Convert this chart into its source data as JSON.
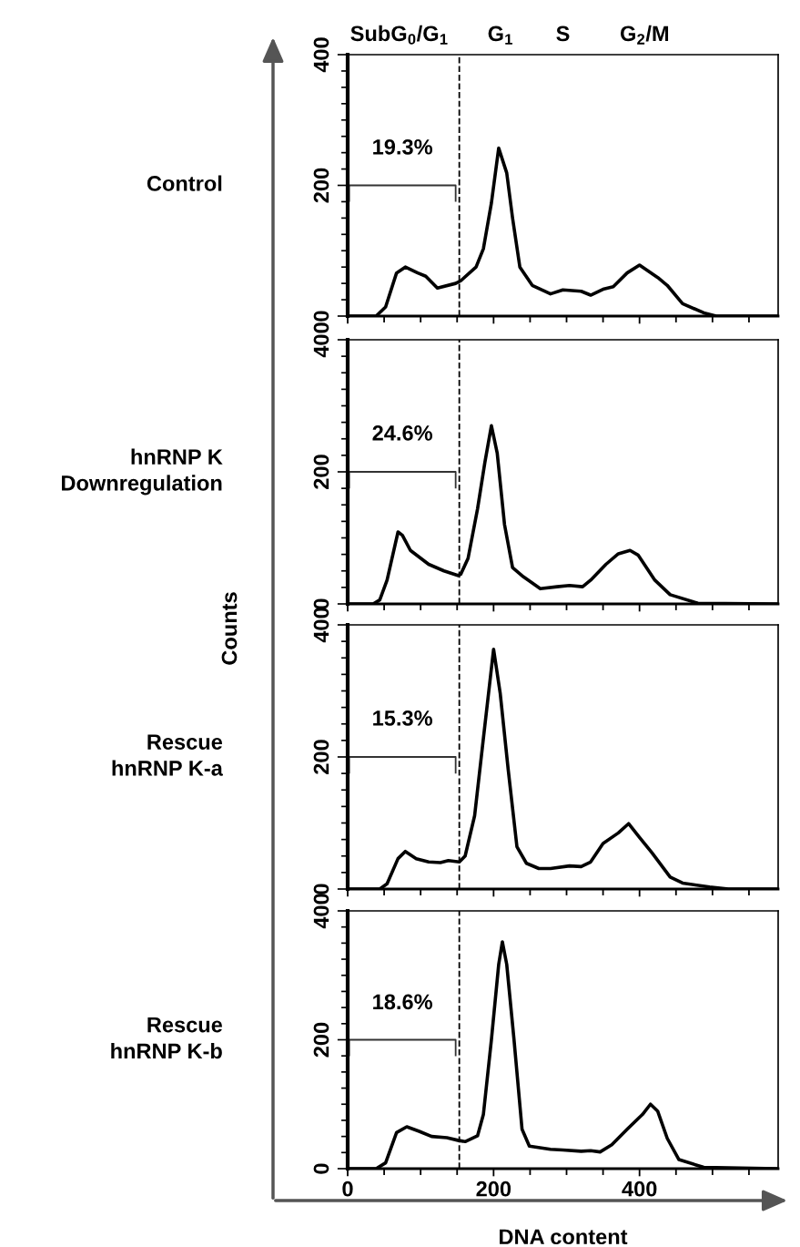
{
  "chart_data": [
    {
      "type": "line",
      "title": "Control",
      "series": [
        {
          "color": "#000000",
          "x": [
            0,
            39,
            52,
            67,
            79,
            96,
            107,
            123,
            148,
            155,
            176,
            186,
            197,
            207,
            218,
            226,
            236,
            253,
            278,
            295,
            320,
            333,
            350,
            364,
            383,
            400,
            425,
            438,
            459,
            488,
            505,
            590
          ],
          "values": [
            0,
            0,
            14,
            66,
            75,
            66,
            61,
            43,
            50,
            54,
            75,
            103,
            173,
            257,
            219,
            150,
            75,
            47,
            34,
            40,
            38,
            32,
            41,
            45,
            66,
            78,
            59,
            47,
            19,
            5,
            0,
            0
          ]
        }
      ],
      "xlim": [
        0,
        590
      ],
      "xticks": [
        0,
        {
          "value": 50,
          "label": null
        },
        {
          "value": 100,
          "label": null
        },
        {
          "value": 150,
          "label": null
        },
        200,
        {
          "value": 250,
          "label": null
        },
        {
          "value": 300,
          "label": null
        },
        {
          "value": 350,
          "label": null
        },
        400,
        {
          "value": 450,
          "label": null
        },
        {
          "value": 500,
          "label": null
        },
        {
          "value": 550,
          "label": null
        }
      ],
      "ylim": [
        0,
        400
      ],
      "yticks": [
        0,
        {
          "value": 25,
          "label": null
        },
        {
          "value": 50,
          "label": null
        },
        {
          "value": 75,
          "label": null
        },
        {
          "value": 100,
          "label": null
        },
        {
          "value": 125,
          "label": null
        },
        {
          "value": 150,
          "label": null
        },
        {
          "value": 175,
          "label": null
        },
        200,
        {
          "value": 225,
          "label": null
        },
        {
          "value": 250,
          "label": null
        },
        {
          "value": 275,
          "label": null
        },
        {
          "value": 300,
          "label": null
        },
        {
          "value": 325,
          "label": null
        },
        {
          "value": 350,
          "label": null
        },
        {
          "value": 375,
          "label": null
        },
        400
      ],
      "ref_lines": [
        {
          "axis": "x",
          "value": 153,
          "line_style": "dashed"
        }
      ],
      "annotations": [
        "19.3%",
        "SubG$_{0}$/G$_{1}$",
        "G$_{1}$",
        "S",
        "G$_{2}$/M"
      ],
      "tick_labels": "y"
    },
    {
      "type": "line",
      "title": "hnRNP K\nDownregulation",
      "series": [
        {
          "color": "#000000",
          "x": [
            0,
            35,
            44,
            54,
            69,
            75,
            86,
            111,
            132,
            151,
            155,
            165,
            178,
            188,
            197,
            205,
            215,
            226,
            241,
            264,
            287,
            304,
            322,
            333,
            354,
            371,
            387,
            398,
            421,
            442,
            480,
            590
          ],
          "values": [
            0,
            0,
            6,
            36,
            109,
            104,
            81,
            60,
            50,
            43,
            45,
            69,
            144,
            214,
            270,
            228,
            120,
            55,
            41,
            23,
            26,
            28,
            26,
            36,
            60,
            76,
            81,
            74,
            36,
            14,
            1,
            0
          ]
        }
      ],
      "xlim": [
        0,
        590
      ],
      "xticks": [
        0,
        {
          "value": 50,
          "label": null
        },
        {
          "value": 100,
          "label": null
        },
        {
          "value": 150,
          "label": null
        },
        200,
        {
          "value": 250,
          "label": null
        },
        {
          "value": 300,
          "label": null
        },
        {
          "value": 350,
          "label": null
        },
        400,
        {
          "value": 450,
          "label": null
        },
        {
          "value": 500,
          "label": null
        },
        {
          "value": 550,
          "label": null
        }
      ],
      "ylim": [
        0,
        400
      ],
      "yticks": [
        0,
        {
          "value": 25,
          "label": null
        },
        {
          "value": 50,
          "label": null
        },
        {
          "value": 75,
          "label": null
        },
        {
          "value": 100,
          "label": null
        },
        {
          "value": 125,
          "label": null
        },
        {
          "value": 150,
          "label": null
        },
        {
          "value": 175,
          "label": null
        },
        200,
        {
          "value": 225,
          "label": null
        },
        {
          "value": 250,
          "label": null
        },
        {
          "value": 275,
          "label": null
        },
        {
          "value": 300,
          "label": null
        },
        {
          "value": 325,
          "label": null
        },
        {
          "value": 350,
          "label": null
        },
        {
          "value": 375,
          "label": null
        },
        400
      ],
      "ref_lines": [
        {
          "axis": "x",
          "value": 153,
          "line_style": "dashed"
        }
      ],
      "annotations": [
        "24.6%"
      ],
      "tick_labels": "y"
    },
    {
      "type": "line",
      "title": "Rescue\nhnRNP K-a",
      "ylabel": "Counts",
      "series": [
        {
          "color": "#000000",
          "x": [
            0,
            44,
            54,
            69,
            79,
            94,
            111,
            127,
            138,
            153,
            161,
            174,
            186,
            200,
            209,
            220,
            232,
            245,
            262,
            278,
            304,
            320,
            333,
            350,
            371,
            385,
            400,
            417,
            442,
            459,
            496,
            522,
            590
          ],
          "values": [
            0,
            0,
            8,
            46,
            57,
            46,
            41,
            40,
            43,
            41,
            50,
            111,
            228,
            363,
            297,
            181,
            64,
            39,
            31,
            31,
            35,
            34,
            41,
            69,
            85,
            99,
            78,
            55,
            18,
            9,
            3,
            0,
            0
          ]
        }
      ],
      "xlim": [
        0,
        590
      ],
      "xticks": [
        0,
        {
          "value": 50,
          "label": null
        },
        {
          "value": 100,
          "label": null
        },
        {
          "value": 150,
          "label": null
        },
        200,
        {
          "value": 250,
          "label": null
        },
        {
          "value": 300,
          "label": null
        },
        {
          "value": 350,
          "label": null
        },
        400,
        {
          "value": 450,
          "label": null
        },
        {
          "value": 500,
          "label": null
        },
        {
          "value": 550,
          "label": null
        }
      ],
      "ylim": [
        0,
        400
      ],
      "yticks": [
        0,
        {
          "value": 25,
          "label": null
        },
        {
          "value": 50,
          "label": null
        },
        {
          "value": 75,
          "label": null
        },
        {
          "value": 100,
          "label": null
        },
        {
          "value": 125,
          "label": null
        },
        {
          "value": 150,
          "label": null
        },
        {
          "value": 175,
          "label": null
        },
        200,
        {
          "value": 225,
          "label": null
        },
        {
          "value": 250,
          "label": null
        },
        {
          "value": 275,
          "label": null
        },
        {
          "value": 300,
          "label": null
        },
        {
          "value": 325,
          "label": null
        },
        {
          "value": 350,
          "label": null
        },
        {
          "value": 375,
          "label": null
        },
        400
      ],
      "ref_lines": [
        {
          "axis": "x",
          "value": 153,
          "line_style": "dashed"
        }
      ],
      "annotations": [
        "15.3%"
      ],
      "tick_labels": "y"
    },
    {
      "type": "line",
      "title": "Rescue\nhnRNP K-b",
      "xlabel": "DNA content",
      "series": [
        {
          "color": "#000000",
          "x": [
            0,
            39,
            52,
            67,
            81,
            98,
            115,
            136,
            151,
            161,
            178,
            186,
            197,
            207,
            212,
            218,
            228,
            239,
            249,
            278,
            295,
            320,
            333,
            346,
            362,
            383,
            404,
            415,
            425,
            438,
            454,
            488,
            590
          ],
          "values": [
            0,
            0,
            9,
            56,
            65,
            58,
            50,
            48,
            44,
            42,
            51,
            84,
            200,
            317,
            352,
            317,
            200,
            61,
            35,
            30,
            29,
            27,
            28,
            26,
            37,
            61,
            84,
            100,
            89,
            47,
            14,
            2,
            0
          ]
        }
      ],
      "xlim": [
        0,
        590
      ],
      "xticks": [
        0,
        {
          "value": 50,
          "label": null
        },
        {
          "value": 100,
          "label": null
        },
        {
          "value": 150,
          "label": null
        },
        200,
        {
          "value": 250,
          "label": null
        },
        {
          "value": 300,
          "label": null
        },
        {
          "value": 350,
          "label": null
        },
        400,
        {
          "value": 450,
          "label": null
        },
        {
          "value": 500,
          "label": null
        },
        {
          "value": 550,
          "label": null
        }
      ],
      "ylim": [
        0,
        400
      ],
      "yticks": [
        0,
        {
          "value": 25,
          "label": null
        },
        {
          "value": 50,
          "label": null
        },
        {
          "value": 75,
          "label": null
        },
        {
          "value": 100,
          "label": null
        },
        {
          "value": 125,
          "label": null
        },
        {
          "value": 150,
          "label": null
        },
        {
          "value": 175,
          "label": null
        },
        200,
        {
          "value": 225,
          "label": null
        },
        {
          "value": 250,
          "label": null
        },
        {
          "value": 275,
          "label": null
        },
        {
          "value": 300,
          "label": null
        },
        {
          "value": 325,
          "label": null
        },
        {
          "value": 350,
          "label": null
        },
        {
          "value": 375,
          "label": null
        },
        400
      ],
      "ref_lines": [
        {
          "axis": "x",
          "value": 153,
          "line_style": "dashed"
        }
      ],
      "annotations": [
        "18.6%"
      ]
    }
  ]
}
